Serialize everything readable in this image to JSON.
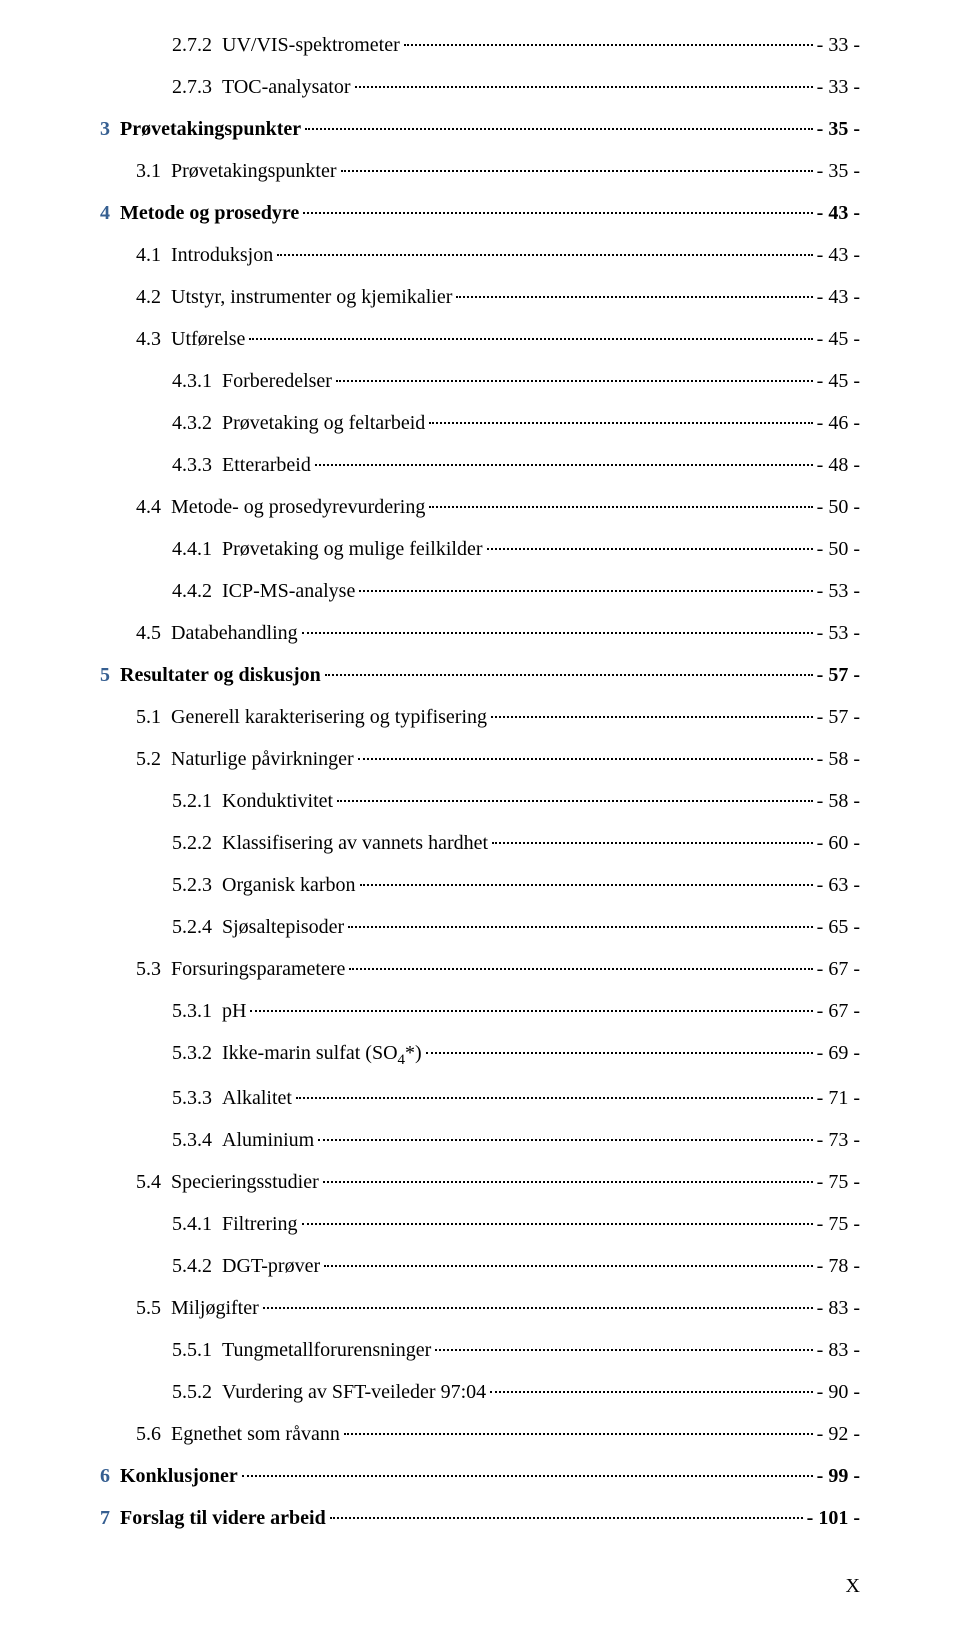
{
  "footer_marker": "X",
  "num_colors": {
    "chapter": "#365f91",
    "normal": "#000000"
  },
  "toc": [
    {
      "level": 2,
      "num": "2.7.2",
      "title": "UV/VIS-spektrometer",
      "page": "- 33 -",
      "bold": false,
      "chapter": false
    },
    {
      "level": 2,
      "num": "2.7.3",
      "title": "TOC-analysator",
      "page": "- 33 -",
      "bold": false,
      "chapter": false
    },
    {
      "level": 0,
      "num": "3",
      "title": "Prøvetakingspunkter",
      "page": "- 35 -",
      "bold": true,
      "chapter": true
    },
    {
      "level": 1,
      "num": "3.1",
      "title": "Prøvetakingspunkter",
      "page": "- 35 -",
      "bold": false,
      "chapter": false
    },
    {
      "level": 0,
      "num": "4",
      "title": "Metode og prosedyre",
      "page": "- 43 -",
      "bold": true,
      "chapter": true
    },
    {
      "level": 1,
      "num": "4.1",
      "title": "Introduksjon",
      "page": "- 43 -",
      "bold": false,
      "chapter": false
    },
    {
      "level": 1,
      "num": "4.2",
      "title": "Utstyr, instrumenter og kjemikalier",
      "page": "- 43 -",
      "bold": false,
      "chapter": false
    },
    {
      "level": 1,
      "num": "4.3",
      "title": "Utførelse",
      "page": "- 45 -",
      "bold": false,
      "chapter": false
    },
    {
      "level": 2,
      "num": "4.3.1",
      "title": "Forberedelser",
      "page": "- 45 -",
      "bold": false,
      "chapter": false
    },
    {
      "level": 2,
      "num": "4.3.2",
      "title": "Prøvetaking og feltarbeid",
      "page": "- 46 -",
      "bold": false,
      "chapter": false
    },
    {
      "level": 2,
      "num": "4.3.3",
      "title": "Etterarbeid",
      "page": "- 48 -",
      "bold": false,
      "chapter": false
    },
    {
      "level": 1,
      "num": "4.4",
      "title": "Metode- og prosedyrevurdering",
      "page": "- 50 -",
      "bold": false,
      "chapter": false
    },
    {
      "level": 2,
      "num": "4.4.1",
      "title": "Prøvetaking og mulige feilkilder",
      "page": "- 50 -",
      "bold": false,
      "chapter": false
    },
    {
      "level": 2,
      "num": "4.4.2",
      "title": "ICP-MS-analyse",
      "page": "- 53 -",
      "bold": false,
      "chapter": false
    },
    {
      "level": 1,
      "num": "4.5",
      "title": "Databehandling",
      "page": "- 53 -",
      "bold": false,
      "chapter": false
    },
    {
      "level": 0,
      "num": "5",
      "title": "Resultater og diskusjon",
      "page": "- 57 -",
      "bold": true,
      "chapter": true
    },
    {
      "level": 1,
      "num": "5.1",
      "title": "Generell karakterisering og typifisering",
      "page": "- 57 -",
      "bold": false,
      "chapter": false
    },
    {
      "level": 1,
      "num": "5.2",
      "title": "Naturlige påvirkninger",
      "page": "- 58 -",
      "bold": false,
      "chapter": false
    },
    {
      "level": 2,
      "num": "5.2.1",
      "title": "Konduktivitet",
      "page": "- 58 -",
      "bold": false,
      "chapter": false
    },
    {
      "level": 2,
      "num": "5.2.2",
      "title": "Klassifisering av vannets hardhet",
      "page": "- 60 -",
      "bold": false,
      "chapter": false
    },
    {
      "level": 2,
      "num": "5.2.3",
      "title": "Organisk karbon",
      "page": "- 63 -",
      "bold": false,
      "chapter": false
    },
    {
      "level": 2,
      "num": "5.2.4",
      "title": "Sjøsaltepisoder",
      "page": "- 65 -",
      "bold": false,
      "chapter": false
    },
    {
      "level": 1,
      "num": "5.3",
      "title": "Forsuringsparametere",
      "page": "- 67 -",
      "bold": false,
      "chapter": false
    },
    {
      "level": 2,
      "num": "5.3.1",
      "title": "pH",
      "page": "- 67 -",
      "bold": false,
      "chapter": false
    },
    {
      "level": 2,
      "num": "5.3.2",
      "title": "Ikke-marin sulfat (SO4*)",
      "page": "- 69 -",
      "bold": false,
      "chapter": false,
      "sub4": true
    },
    {
      "level": 2,
      "num": "5.3.3",
      "title": "Alkalitet",
      "page": "- 71 -",
      "bold": false,
      "chapter": false
    },
    {
      "level": 2,
      "num": "5.3.4",
      "title": "Aluminium",
      "page": "- 73 -",
      "bold": false,
      "chapter": false
    },
    {
      "level": 1,
      "num": "5.4",
      "title": "Specieringsstudier",
      "page": "- 75 -",
      "bold": false,
      "chapter": false
    },
    {
      "level": 2,
      "num": "5.4.1",
      "title": "Filtrering",
      "page": "- 75 -",
      "bold": false,
      "chapter": false
    },
    {
      "level": 2,
      "num": "5.4.2",
      "title": "DGT-prøver",
      "page": "- 78 -",
      "bold": false,
      "chapter": false
    },
    {
      "level": 1,
      "num": "5.5",
      "title": "Miljøgifter",
      "page": "- 83 -",
      "bold": false,
      "chapter": false
    },
    {
      "level": 2,
      "num": "5.5.1",
      "title": "Tungmetallforurensninger",
      "page": "- 83 -",
      "bold": false,
      "chapter": false
    },
    {
      "level": 2,
      "num": "5.5.2",
      "title": "Vurdering av SFT-veileder 97:04",
      "page": "- 90 -",
      "bold": false,
      "chapter": false
    },
    {
      "level": 1,
      "num": "5.6",
      "title": "Egnethet som råvann",
      "page": "- 92 -",
      "bold": false,
      "chapter": false
    },
    {
      "level": 0,
      "num": "6",
      "title": "Konklusjoner",
      "page": "- 99 -",
      "bold": true,
      "chapter": true
    },
    {
      "level": 0,
      "num": "7",
      "title": "Forslag til videre arbeid",
      "page": "- 101 -",
      "bold": true,
      "chapter": true
    }
  ],
  "num_widths_ch": {
    "0": 3,
    "1": 5,
    "2": 7
  }
}
